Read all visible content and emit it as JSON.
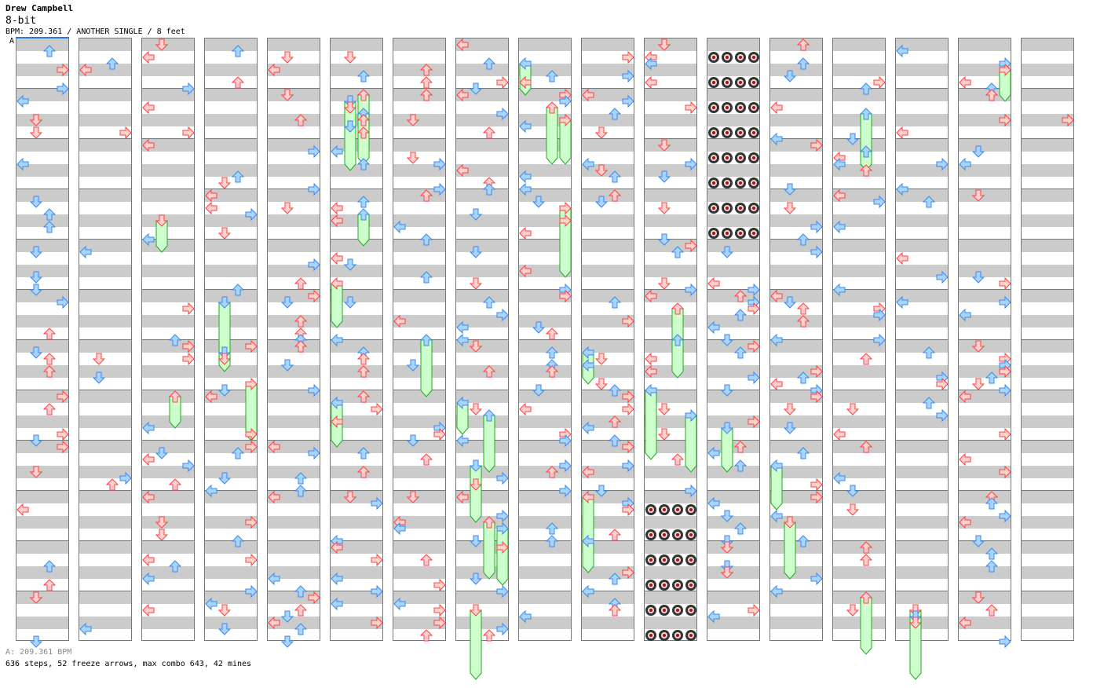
{
  "header": {
    "artist": "Drew Campbell",
    "song": "8-bit",
    "info": "BPM: 209.361 / ANOTHER SINGLE / 8 feet",
    "bpm_marker": "A"
  },
  "footer": {
    "bpm_line": "A: 209.361 BPM",
    "stats": "636 steps, 52 freeze arrows, max combo 643, 42 mines"
  },
  "chart": {
    "columns": 17,
    "measures_per_column": 12,
    "lanes": [
      "left",
      "down",
      "up",
      "right"
    ],
    "colors": {
      "quarter": "#ff4040",
      "eighth": "#3a8ae8",
      "freeze": "#ccffcc",
      "freeze_border": "#22aa22",
      "mine": "#333333",
      "sixteenth": "#e080e8"
    },
    "mine_blocks": [
      {
        "column": 11,
        "measures": [
          0,
          1,
          2,
          3
        ]
      },
      {
        "column": 10,
        "measures": [
          9,
          10,
          11
        ]
      }
    ]
  }
}
